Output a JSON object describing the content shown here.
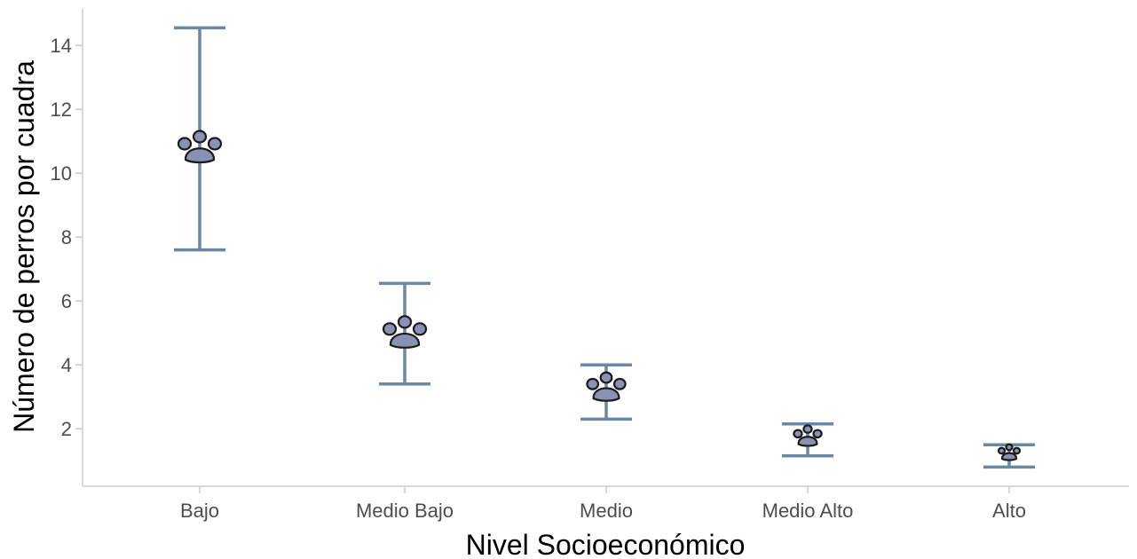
{
  "chart_data": {
    "type": "scatter",
    "xlabel": "Nivel Socioeconómico",
    "ylabel": "Número de perros por cuadra",
    "categories": [
      "Bajo",
      "Medio Bajo",
      "Medio",
      "Medio Alto",
      "Alto"
    ],
    "values": [
      10.7,
      4.9,
      3.2,
      1.7,
      1.2
    ],
    "error_low": [
      7.6,
      3.4,
      2.3,
      1.15,
      0.8
    ],
    "error_high": [
      14.55,
      6.55,
      4.0,
      2.15,
      1.5
    ],
    "yticks": [
      2,
      4,
      6,
      8,
      10,
      12,
      14
    ],
    "ylim": [
      0.2,
      15.2
    ],
    "grid": false,
    "marker": "paw-icon",
    "marker_sizes": [
      1.0,
      1.0,
      0.9,
      0.65,
      0.5
    ],
    "colors": {
      "errorbar": "#6a87a4",
      "marker_fill": "#8b91b5",
      "marker_stroke": "#1a1a1a",
      "axis": "#cccccc"
    }
  }
}
